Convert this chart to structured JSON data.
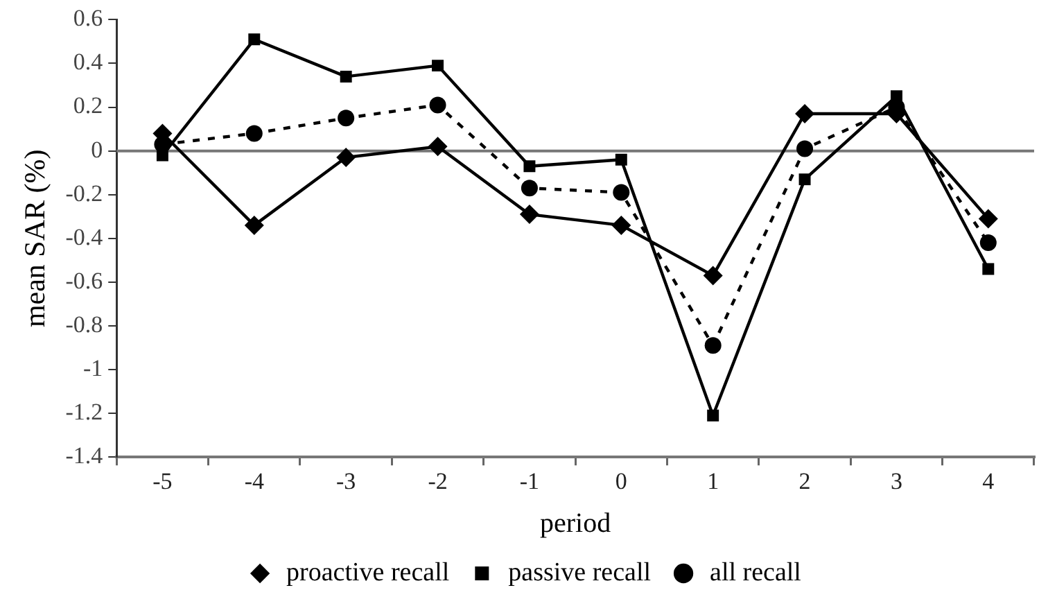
{
  "chart_data": {
    "type": "line",
    "xlabel": "period",
    "ylabel": "mean SAR (%)",
    "categories": [
      "-5",
      "-4",
      "-3",
      "-2",
      "-1",
      "0",
      "1",
      "2",
      "3",
      "4"
    ],
    "series": [
      {
        "name": "proactive recall",
        "color": "#000000",
        "marker": "diamond",
        "line_style": "solid",
        "values": [
          0.08,
          -0.34,
          -0.03,
          0.02,
          -0.29,
          -0.34,
          -0.57,
          0.17,
          0.17,
          -0.31
        ]
      },
      {
        "name": "passive recall",
        "color": "#000000",
        "marker": "square",
        "line_style": "solid",
        "values": [
          -0.02,
          0.51,
          0.34,
          0.39,
          -0.07,
          -0.04,
          -1.21,
          -0.13,
          0.25,
          -0.54
        ]
      },
      {
        "name": "all recall",
        "color": "#000000",
        "marker": "circle",
        "line_style": "dashed",
        "values": [
          0.03,
          0.08,
          0.15,
          0.21,
          -0.17,
          -0.19,
          -0.89,
          0.01,
          0.2,
          -0.42
        ]
      }
    ],
    "ylim": [
      -1.4,
      0.6
    ],
    "yticks": [
      0.6,
      0.4,
      0.2,
      0,
      -0.2,
      -0.4,
      -0.6,
      -0.8,
      -1,
      -1.2,
      -1.4
    ],
    "ref_lines": [
      {
        "axis": "y",
        "value": 0,
        "color": "#777777"
      }
    ],
    "grid": false,
    "legend": "bottom"
  }
}
